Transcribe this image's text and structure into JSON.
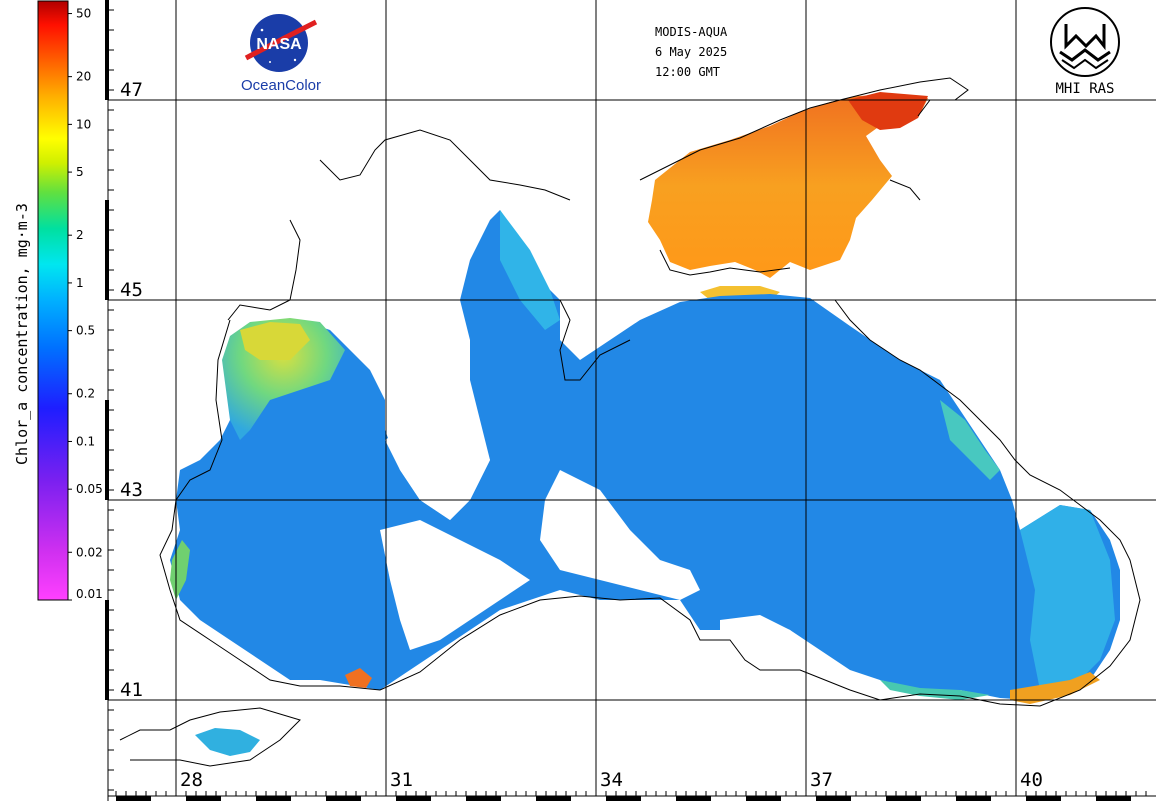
{
  "header": {
    "sensor": "MODIS-AQUA",
    "date": "6 May 2025",
    "time": "12:00 GMT"
  },
  "logos": {
    "nasa_word": "NASA",
    "oceancolor": "OceanColor",
    "mhi": "MHI RAS"
  },
  "colorbar": {
    "title": "Chlor_a concentration, mg·m-3",
    "ticks": [
      "50",
      "20",
      "10",
      "5",
      "2",
      "1",
      "0.5",
      "0.2",
      "0.1",
      "0.05",
      "0.02",
      "0.01"
    ],
    "tick_values": [
      50,
      20,
      10,
      5,
      2,
      1,
      0.5,
      0.2,
      0.1,
      0.05,
      0.02,
      0.01
    ],
    "scale": "log",
    "range": [
      0.01,
      60
    ],
    "colors": [
      "#ff33ff",
      "#a020f0",
      "#2020ff",
      "#0080ff",
      "#00d0ff",
      "#00e0a0",
      "#40e040",
      "#c0f000",
      "#ffff00",
      "#ffb000",
      "#ff6000",
      "#ff0000",
      "#c00000"
    ]
  },
  "grid": {
    "lat_labels": [
      "47",
      "45",
      "43",
      "41"
    ],
    "lon_labels": [
      "28",
      "31",
      "34",
      "37",
      "40"
    ]
  },
  "colors": {
    "water_low": "#2a8ee8",
    "water_mid": "#1e7fe0",
    "coastal": "#35c0e0",
    "azov": "#f6a020",
    "azov_high": "#e04010",
    "shelf": "#c8e040",
    "coastline": "#000000"
  }
}
